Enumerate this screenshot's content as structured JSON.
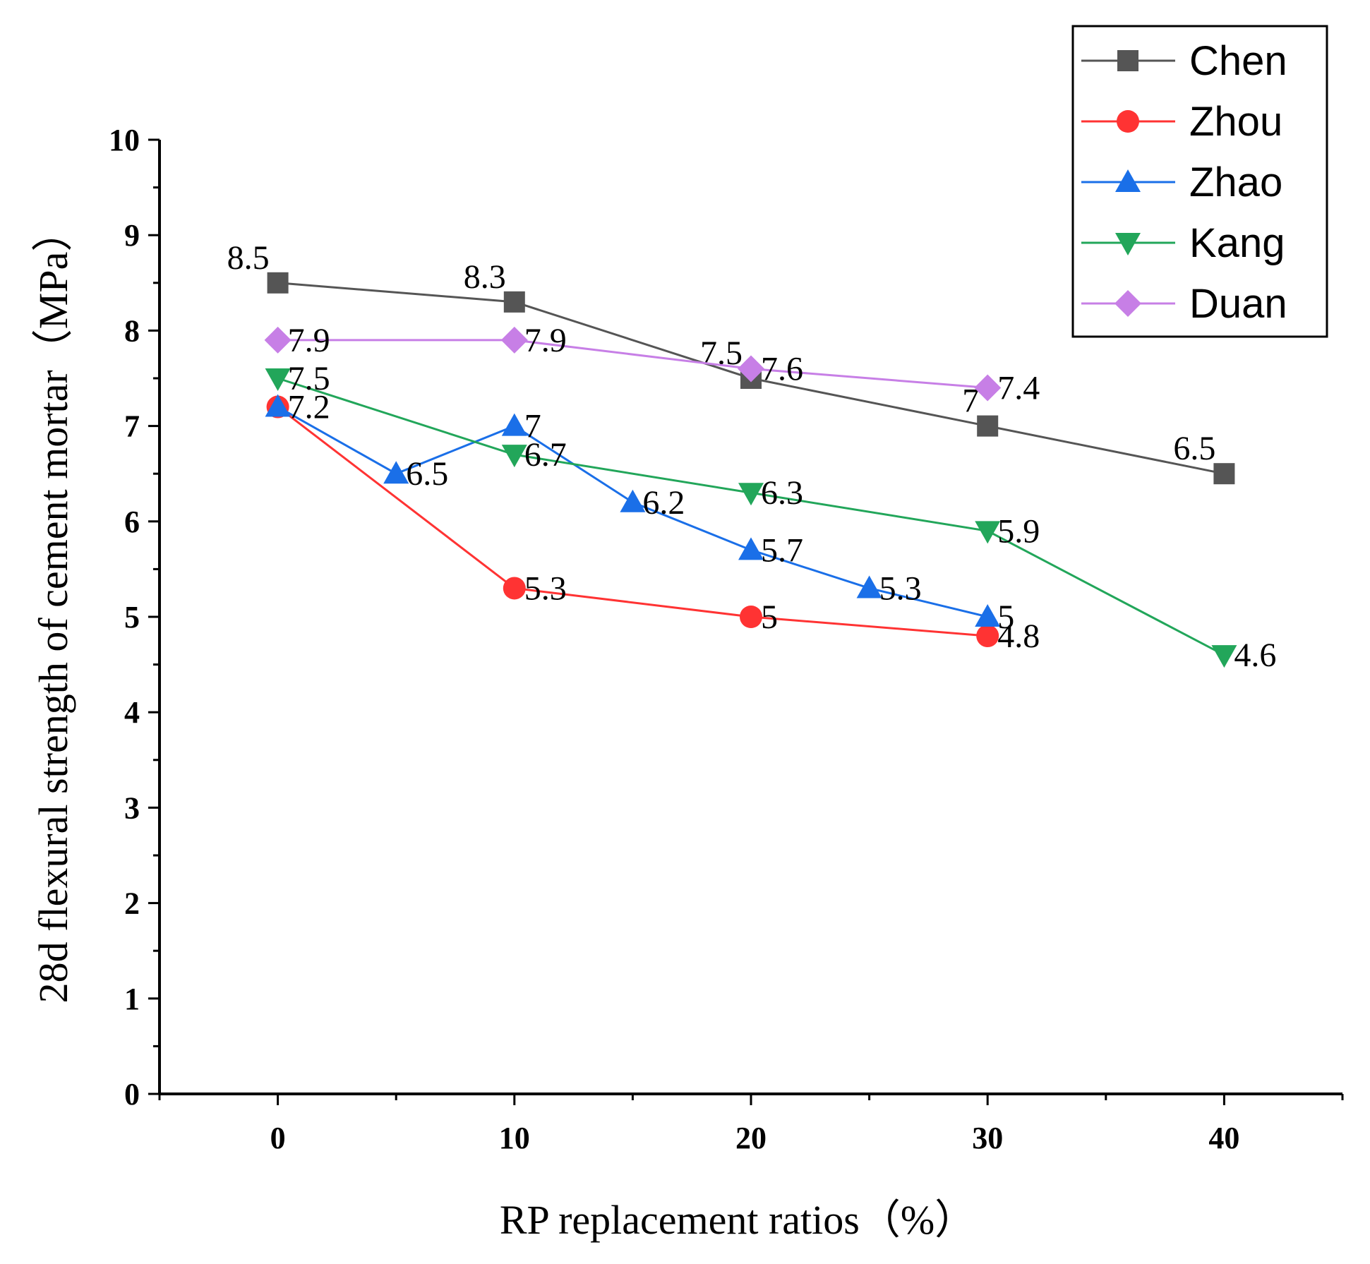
{
  "chart_data": {
    "type": "line",
    "title": "",
    "xlabel": "RP replacement ratios（%）",
    "ylabel": "28d flexural strength of cement mortar（MPa）",
    "xlim": [
      -5,
      45
    ],
    "ylim": [
      0,
      10
    ],
    "xticks": [
      "0",
      "10",
      "20",
      "30",
      "40"
    ],
    "yticks": [
      "0",
      "1",
      "2",
      "3",
      "4",
      "5",
      "6",
      "7",
      "8",
      "9",
      "10"
    ],
    "grid": false,
    "legend_position": "top-right",
    "series": [
      {
        "name": "Chen",
        "color": "#555555",
        "marker": "square",
        "x": [
          0,
          10,
          20,
          30,
          40
        ],
        "y": [
          8.5,
          8.3,
          7.5,
          7,
          6.5
        ],
        "labels": [
          "8.5",
          "8.3",
          "7.5",
          "7",
          "6.5"
        ]
      },
      {
        "name": "Zhou",
        "color": "#ff3333",
        "marker": "circle",
        "x": [
          0,
          10,
          20,
          30
        ],
        "y": [
          7.2,
          5.3,
          5,
          4.8
        ],
        "labels": [
          "",
          "5.3",
          "5",
          "4.8"
        ]
      },
      {
        "name": "Zhao",
        "color": "#1a6fe8",
        "marker": "triangle-up",
        "x": [
          0,
          5,
          10,
          15,
          20,
          25,
          30
        ],
        "y": [
          7.2,
          6.5,
          7,
          6.2,
          5.7,
          5.3,
          5
        ],
        "labels": [
          "7.2",
          "6.5",
          "7",
          "6.2",
          "5.7",
          "5.3",
          "5"
        ]
      },
      {
        "name": "Kang",
        "color": "#22a65a",
        "marker": "triangle-down",
        "x": [
          0,
          10,
          20,
          30,
          40
        ],
        "y": [
          7.5,
          6.7,
          6.3,
          5.9,
          4.6
        ],
        "labels": [
          "7.5",
          "6.7",
          "6.3",
          "5.9",
          "4.6"
        ]
      },
      {
        "name": "Duan",
        "color": "#c77fe6",
        "marker": "diamond",
        "x": [
          0,
          10,
          20,
          30
        ],
        "y": [
          7.9,
          7.9,
          7.6,
          7.4
        ],
        "labels": [
          "7.9",
          "7.9",
          "7.6",
          "7.4"
        ]
      }
    ]
  }
}
